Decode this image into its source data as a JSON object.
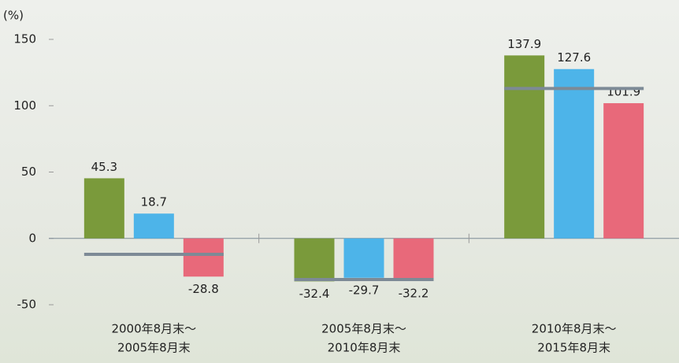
{
  "chart_data": {
    "type": "bar",
    "y_unit": "(%)",
    "categories": [
      [
        "2000年8月末～",
        "2005年8月末"
      ],
      [
        "2005年8月末～",
        "2010年8月末"
      ],
      [
        "2010年8月末～",
        "2015年8月末"
      ]
    ],
    "series": [
      {
        "color": "#7a9a3b",
        "values": [
          45.3,
          -32.4,
          137.9
        ]
      },
      {
        "color": "#4db4e9",
        "values": [
          18.7,
          -29.7,
          127.6
        ]
      },
      {
        "color": "#e8697a",
        "values": [
          -28.8,
          -32.2,
          101.9
        ]
      }
    ],
    "reference_lines": {
      "color": "#7d8a96",
      "values": [
        -12,
        -31,
        113
      ]
    },
    "ylim": [
      -50,
      150
    ],
    "yticks": [
      -50,
      0,
      50,
      100,
      150
    ]
  }
}
